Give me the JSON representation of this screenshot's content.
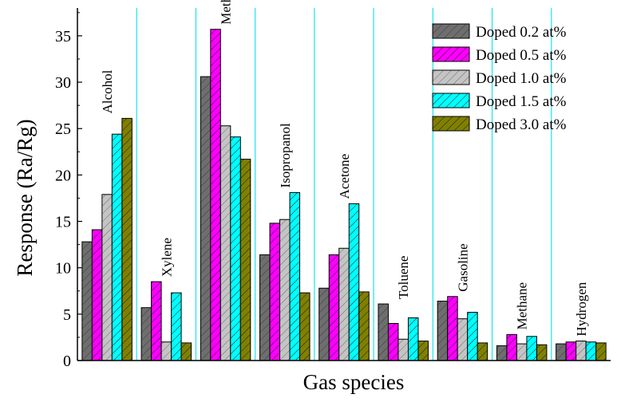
{
  "chart_data": {
    "type": "bar",
    "title": "",
    "xlabel": "Gas species",
    "ylabel": "Response (Ra/Rg)",
    "ylim": [
      0,
      38
    ],
    "yticks": [
      0,
      5,
      10,
      15,
      20,
      25,
      30,
      35
    ],
    "grid": "vertical separators between categories",
    "legend_position": "top-right",
    "categories": [
      "Alcohol",
      "Xylene",
      "Methanal",
      "Isopropanol",
      "Acetone",
      "Toluene",
      "Gasoline",
      "Methane",
      "Hydrogen"
    ],
    "series": [
      {
        "name": "Doped 0.2 at%",
        "color": "#6e6e6e",
        "hatch": "dark-diagonal",
        "values": [
          12.8,
          5.7,
          30.6,
          11.4,
          7.8,
          6.1,
          6.4,
          1.6,
          1.8
        ]
      },
      {
        "name": "Doped 0.5 at%",
        "color": "#ff00ff",
        "hatch": "diagonal",
        "values": [
          14.1,
          8.5,
          35.7,
          14.8,
          11.4,
          4.0,
          6.9,
          2.8,
          2.0
        ]
      },
      {
        "name": "Doped 1.0 at%",
        "color": "#c4c4c4",
        "hatch": "light-diagonal",
        "values": [
          17.9,
          2.0,
          25.3,
          15.2,
          12.1,
          2.3,
          4.5,
          1.8,
          2.1
        ]
      },
      {
        "name": "Doped 1.5 at%",
        "color": "#00ffff",
        "hatch": "diagonal",
        "values": [
          24.4,
          7.3,
          24.1,
          18.1,
          16.9,
          4.6,
          5.2,
          2.6,
          2.0
        ]
      },
      {
        "name": "Doped 3.0 at%",
        "color": "#808000",
        "hatch": "diagonal",
        "values": [
          26.1,
          1.9,
          21.7,
          7.3,
          7.4,
          2.1,
          1.9,
          1.7,
          1.9
        ]
      }
    ]
  }
}
